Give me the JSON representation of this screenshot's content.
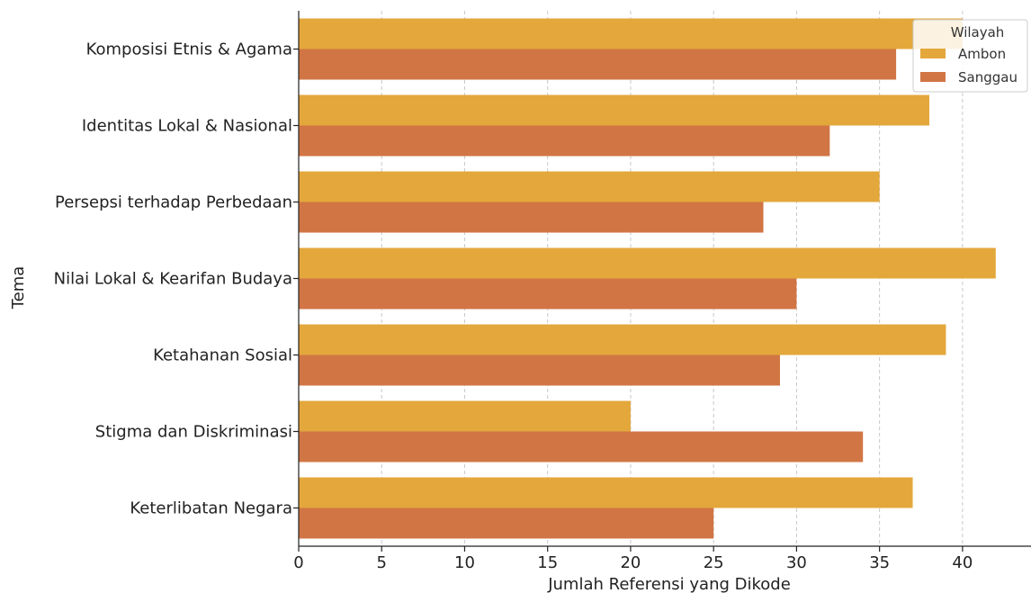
{
  "chart_data": {
    "type": "bar",
    "orientation": "horizontal",
    "categories": [
      "Komposisi Etnis & Agama",
      "Identitas Lokal & Nasional",
      "Persepsi terhadap Perbedaan",
      "Nilai Lokal & Kearifan Budaya",
      "Ketahanan Sosial",
      "Stigma dan Diskriminasi",
      "Keterlibatan Negara"
    ],
    "series": [
      {
        "name": "Ambon",
        "color": "#e3a73b",
        "values": [
          40,
          38,
          35,
          42,
          39,
          20,
          37
        ]
      },
      {
        "name": "Sanggau",
        "color": "#d17545",
        "values": [
          36,
          32,
          28,
          30,
          29,
          34,
          25
        ]
      }
    ],
    "xlabel": "Jumlah Referensi yang Dikode",
    "ylabel": "Tema",
    "xlim": [
      0,
      42.5
    ],
    "xticks": [
      0,
      5,
      10,
      15,
      20,
      25,
      30,
      35,
      40
    ],
    "grid": "vertical-dashed",
    "legend": {
      "title": "Wilayah",
      "placement": "top-right"
    }
  }
}
